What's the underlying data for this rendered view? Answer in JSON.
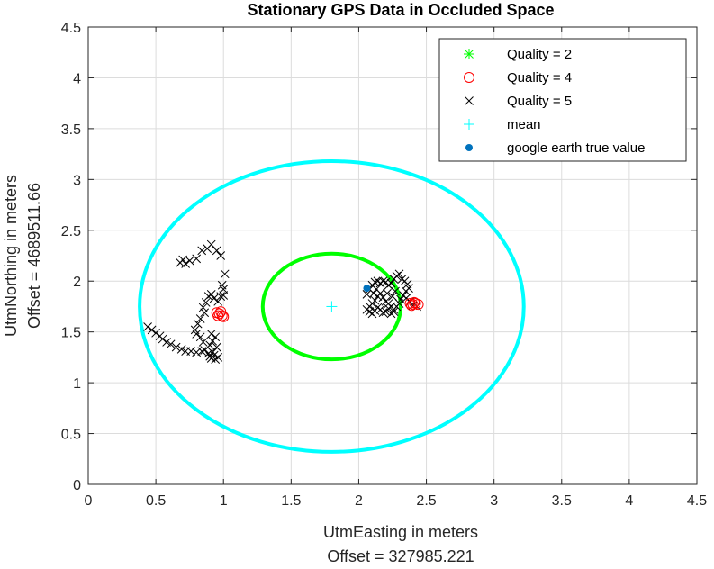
{
  "chart_data": {
    "type": "scatter",
    "title": "Stationary GPS Data in Occluded Space",
    "xlabel": "UtmEasting in meters",
    "xlabel2": "Offset = 327985.221",
    "ylabel": "UtmNorthing in meters",
    "ylabel2": "Offset = 4689511.66",
    "xlim": [
      0,
      4.5
    ],
    "ylim": [
      0,
      4.5
    ],
    "xticks": [
      "0",
      "0.5",
      "1",
      "1.5",
      "2",
      "2.5",
      "3",
      "3.5",
      "4",
      "4.5"
    ],
    "yticks": [
      "0",
      "0.5",
      "1",
      "1.5",
      "2",
      "2.5",
      "3",
      "3.5",
      "4",
      "4.5"
    ],
    "grid": true,
    "legend_position": "top-right",
    "legend": [
      "Quality = 2",
      "Quality = 4",
      "Quality = 5",
      "mean",
      "google earth true value"
    ],
    "colors": {
      "quality2": "#00ff00",
      "quality4": "#ff0000",
      "quality5": "#000000",
      "mean": "#00ffff",
      "truth": "#0072bd",
      "ellipse_green": "#00ff00",
      "ellipse_cyan": "#00ffff"
    },
    "series": [
      {
        "name": "Quality = 2",
        "marker": "asterisk",
        "points": []
      },
      {
        "name": "Quality = 4",
        "marker": "circle",
        "points": [
          [
            0.95,
            1.69
          ],
          [
            0.97,
            1.68
          ],
          [
            0.99,
            1.66
          ],
          [
            1.0,
            1.65
          ],
          [
            0.96,
            1.66
          ],
          [
            0.98,
            1.7
          ],
          [
            2.38,
            1.78
          ],
          [
            2.4,
            1.77
          ],
          [
            2.42,
            1.78
          ],
          [
            2.44,
            1.77
          ],
          [
            2.41,
            1.79
          ],
          [
            2.39,
            1.76
          ]
        ]
      },
      {
        "name": "Quality = 5",
        "marker": "x",
        "points": [
          [
            0.44,
            1.55
          ],
          [
            0.47,
            1.52
          ],
          [
            0.5,
            1.49
          ],
          [
            0.53,
            1.46
          ],
          [
            0.55,
            1.43
          ],
          [
            0.58,
            1.4
          ],
          [
            0.61,
            1.38
          ],
          [
            0.65,
            1.35
          ],
          [
            0.69,
            1.33
          ],
          [
            0.72,
            1.31
          ],
          [
            0.76,
            1.31
          ],
          [
            0.8,
            1.3
          ],
          [
            0.84,
            1.31
          ],
          [
            0.86,
            1.32
          ],
          [
            0.89,
            1.29
          ],
          [
            0.9,
            1.26
          ],
          [
            0.91,
            1.24
          ],
          [
            0.93,
            1.27
          ],
          [
            0.94,
            1.23
          ],
          [
            0.96,
            1.25
          ],
          [
            0.92,
            1.3
          ],
          [
            0.95,
            1.35
          ],
          [
            0.9,
            1.37
          ],
          [
            0.92,
            1.41
          ],
          [
            0.94,
            1.45
          ],
          [
            0.91,
            1.48
          ],
          [
            0.85,
            1.4
          ],
          [
            0.83,
            1.45
          ],
          [
            0.8,
            1.48
          ],
          [
            0.79,
            1.52
          ],
          [
            0.81,
            1.58
          ],
          [
            0.83,
            1.63
          ],
          [
            0.86,
            1.69
          ],
          [
            0.85,
            1.74
          ],
          [
            0.87,
            1.79
          ],
          [
            0.89,
            1.85
          ],
          [
            0.91,
            1.87
          ],
          [
            0.93,
            1.83
          ],
          [
            0.96,
            1.8
          ],
          [
            0.98,
            1.85
          ],
          [
            1.0,
            1.92
          ],
          [
            0.99,
            1.96
          ],
          [
            1.01,
            2.07
          ],
          [
            0.95,
            2.3
          ],
          [
            0.91,
            2.36
          ],
          [
            0.88,
            2.32
          ],
          [
            0.84,
            2.3
          ],
          [
            0.8,
            2.22
          ],
          [
            0.75,
            2.2
          ],
          [
            0.72,
            2.17
          ],
          [
            0.7,
            2.21
          ],
          [
            0.68,
            2.18
          ],
          [
            0.98,
            2.25
          ],
          [
            1.0,
            1.86
          ],
          [
            2.06,
            1.87
          ],
          [
            2.08,
            1.92
          ],
          [
            2.1,
            1.96
          ],
          [
            2.12,
            1.99
          ],
          [
            2.14,
            2.0
          ],
          [
            2.16,
            1.98
          ],
          [
            2.18,
            2.0
          ],
          [
            2.2,
            1.99
          ],
          [
            2.22,
            1.96
          ],
          [
            2.24,
            1.98
          ],
          [
            2.26,
            2.02
          ],
          [
            2.28,
            2.05
          ],
          [
            2.3,
            2.07
          ],
          [
            2.32,
            2.02
          ],
          [
            2.34,
            2.0
          ],
          [
            2.36,
            1.97
          ],
          [
            2.37,
            1.93
          ],
          [
            2.35,
            1.9
          ],
          [
            2.33,
            1.86
          ],
          [
            2.31,
            1.82
          ],
          [
            2.3,
            1.78
          ],
          [
            2.28,
            1.75
          ],
          [
            2.26,
            1.72
          ],
          [
            2.24,
            1.75
          ],
          [
            2.22,
            1.78
          ],
          [
            2.2,
            1.8
          ],
          [
            2.18,
            1.84
          ],
          [
            2.16,
            1.88
          ],
          [
            2.14,
            1.85
          ],
          [
            2.12,
            1.81
          ],
          [
            2.1,
            1.78
          ],
          [
            2.08,
            1.75
          ],
          [
            2.06,
            1.72
          ],
          [
            2.08,
            1.7
          ],
          [
            2.1,
            1.68
          ],
          [
            2.12,
            1.71
          ],
          [
            2.14,
            1.74
          ],
          [
            2.16,
            1.72
          ],
          [
            2.18,
            1.69
          ],
          [
            2.2,
            1.7
          ],
          [
            2.22,
            1.73
          ],
          [
            2.24,
            1.68
          ],
          [
            2.26,
            1.7
          ],
          [
            2.13,
            1.92
          ],
          [
            2.27,
            1.9
          ],
          [
            2.25,
            1.85
          ],
          [
            2.21,
            1.88
          ],
          [
            2.11,
            1.88
          ],
          [
            2.35,
            1.83
          ],
          [
            2.38,
            1.8
          ],
          [
            2.4,
            1.76
          ],
          [
            2.43,
            1.75
          ]
        ]
      },
      {
        "name": "mean",
        "marker": "plus",
        "points": [
          [
            1.8,
            1.75
          ]
        ]
      },
      {
        "name": "google earth true value",
        "marker": "dot",
        "points": [
          [
            2.06,
            1.93
          ]
        ]
      }
    ],
    "ellipses": [
      {
        "color": "green",
        "cx": 1.8,
        "cy": 1.75,
        "rx": 0.51,
        "ry": 0.52
      },
      {
        "color": "cyan",
        "cx": 1.8,
        "cy": 1.75,
        "rx": 1.42,
        "ry": 1.43
      }
    ]
  }
}
